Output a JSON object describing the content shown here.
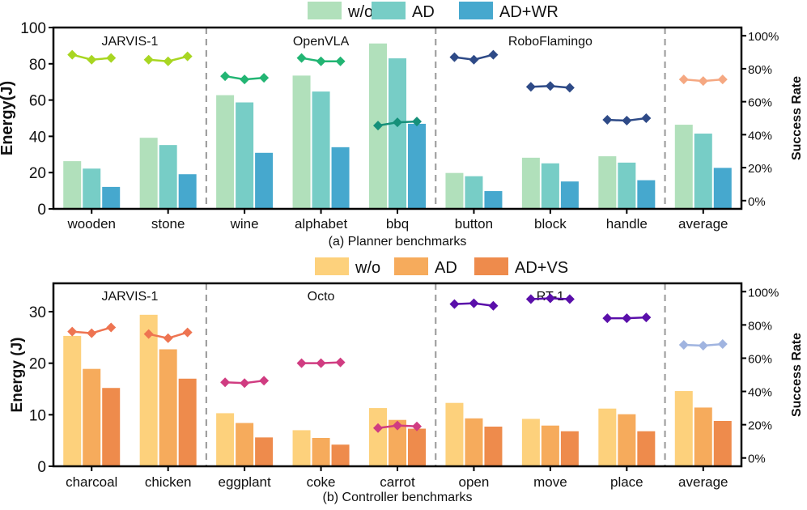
{
  "chart_data": [
    {
      "type": "bar",
      "subtitle": "(a) Planner benchmarks",
      "ylabel": "Energy(J)",
      "y2label": "Success Rate",
      "ylim": [
        0,
        100
      ],
      "yticks": [
        0,
        20,
        40,
        60,
        80,
        100
      ],
      "y2lim": [
        -0.05,
        1.05
      ],
      "y2ticks": [
        0,
        0.2,
        0.4,
        0.6,
        0.8,
        1.0
      ],
      "y2ticklabels": [
        "0%",
        "20%",
        "40%",
        "60%",
        "80%",
        "100%"
      ],
      "categories": [
        "wooden",
        "stone",
        "wine",
        "alphabet",
        "bbq",
        "button",
        "block",
        "handle",
        "average"
      ],
      "series": [
        {
          "name": "w/o",
          "color": "#b1e0bb",
          "values": [
            26.3,
            39.2,
            62.7,
            73.5,
            91.2,
            19.8,
            28.2,
            29.0,
            46.4
          ]
        },
        {
          "name": "AD",
          "color": "#77cdc6",
          "values": [
            22.2,
            35.2,
            58.7,
            64.7,
            83.0,
            18.0,
            25.1,
            25.5,
            41.5
          ]
        },
        {
          "name": "AD+WR",
          "color": "#46a8ce",
          "values": [
            12.1,
            19.1,
            30.9,
            34.0,
            46.9,
            9.8,
            15.1,
            15.8,
            22.6
          ]
        }
      ],
      "groups": [
        {
          "label": "JARVIS-1",
          "start": 0,
          "end": 1
        },
        {
          "label": "OpenVLA",
          "start": 2,
          "end": 4
        },
        {
          "label": "RoboFlamingo",
          "start": 5,
          "end": 7
        },
        {
          "label": "",
          "start": 8,
          "end": 8
        }
      ],
      "success_rate": [
        {
          "category": "wooden",
          "color": "#a8d622",
          "values": [
            0.885,
            0.855,
            0.865
          ]
        },
        {
          "category": "stone",
          "color": "#a8d622",
          "values": [
            0.855,
            0.845,
            0.875
          ]
        },
        {
          "category": "wine",
          "color": "#22b573",
          "values": [
            0.755,
            0.735,
            0.745
          ]
        },
        {
          "category": "alphabet",
          "color": "#22b573",
          "values": [
            0.865,
            0.845,
            0.845
          ]
        },
        {
          "category": "bbq",
          "color": "#16907a",
          "values": [
            0.455,
            0.475,
            0.48
          ]
        },
        {
          "category": "button",
          "color": "#2e4a87",
          "values": [
            0.87,
            0.855,
            0.885
          ]
        },
        {
          "category": "block",
          "color": "#2e4a87",
          "values": [
            0.69,
            0.695,
            0.685
          ]
        },
        {
          "category": "handle",
          "color": "#2e4a87",
          "values": [
            0.49,
            0.485,
            0.5
          ]
        },
        {
          "category": "average",
          "color": "#f5a882",
          "values": [
            0.735,
            0.725,
            0.735
          ]
        }
      ]
    },
    {
      "type": "bar",
      "subtitle": "(b) Controller benchmarks",
      "ylabel": "Energy (J)",
      "y2label": "Success Rate",
      "ylim": [
        0,
        35.5
      ],
      "yticks": [
        0,
        10,
        20,
        30
      ],
      "y2lim": [
        -0.05,
        1.05
      ],
      "y2ticks": [
        0,
        0.2,
        0.4,
        0.6,
        0.8,
        1.0
      ],
      "y2ticklabels": [
        "0%",
        "20%",
        "40%",
        "60%",
        "80%",
        "100%"
      ],
      "categories": [
        "charcoal",
        "chicken",
        "eggplant",
        "coke",
        "carrot",
        "open",
        "move",
        "place",
        "average"
      ],
      "series": [
        {
          "name": "w/o",
          "color": "#fdd17c",
          "values": [
            25.3,
            29.4,
            10.3,
            7.0,
            11.3,
            12.3,
            9.2,
            11.2,
            14.6
          ]
        },
        {
          "name": "AD",
          "color": "#f6ab5c",
          "values": [
            18.9,
            22.7,
            8.4,
            5.5,
            9.0,
            9.3,
            7.9,
            10.1,
            11.4
          ]
        },
        {
          "name": "AD+VS",
          "color": "#ee8b4c",
          "values": [
            15.2,
            17.0,
            5.6,
            4.2,
            7.3,
            7.7,
            6.8,
            6.8,
            8.8
          ]
        }
      ],
      "groups": [
        {
          "label": "JARVIS-1",
          "start": 0,
          "end": 1
        },
        {
          "label": "Octo",
          "start": 2,
          "end": 4
        },
        {
          "label": "RT-1",
          "start": 5,
          "end": 7
        },
        {
          "label": "",
          "start": 8,
          "end": 8
        }
      ],
      "success_rate": [
        {
          "category": "charcoal",
          "color": "#ee7451",
          "values": [
            0.76,
            0.75,
            0.785
          ]
        },
        {
          "category": "chicken",
          "color": "#ee7451",
          "values": [
            0.745,
            0.72,
            0.755
          ]
        },
        {
          "category": "eggplant",
          "color": "#d03c81",
          "values": [
            0.455,
            0.45,
            0.465
          ]
        },
        {
          "category": "coke",
          "color": "#d03c81",
          "values": [
            0.57,
            0.57,
            0.575
          ]
        },
        {
          "category": "carrot",
          "color": "#d03c81",
          "values": [
            0.18,
            0.195,
            0.19
          ]
        },
        {
          "category": "open",
          "color": "#5a0faa",
          "values": [
            0.925,
            0.93,
            0.915
          ]
        },
        {
          "category": "move",
          "color": "#5a0faa",
          "values": [
            0.955,
            0.96,
            0.955
          ]
        },
        {
          "category": "place",
          "color": "#5a0faa",
          "values": [
            0.84,
            0.84,
            0.845
          ]
        },
        {
          "category": "average",
          "color": "#a0b4e0",
          "values": [
            0.68,
            0.675,
            0.685
          ]
        }
      ]
    }
  ]
}
